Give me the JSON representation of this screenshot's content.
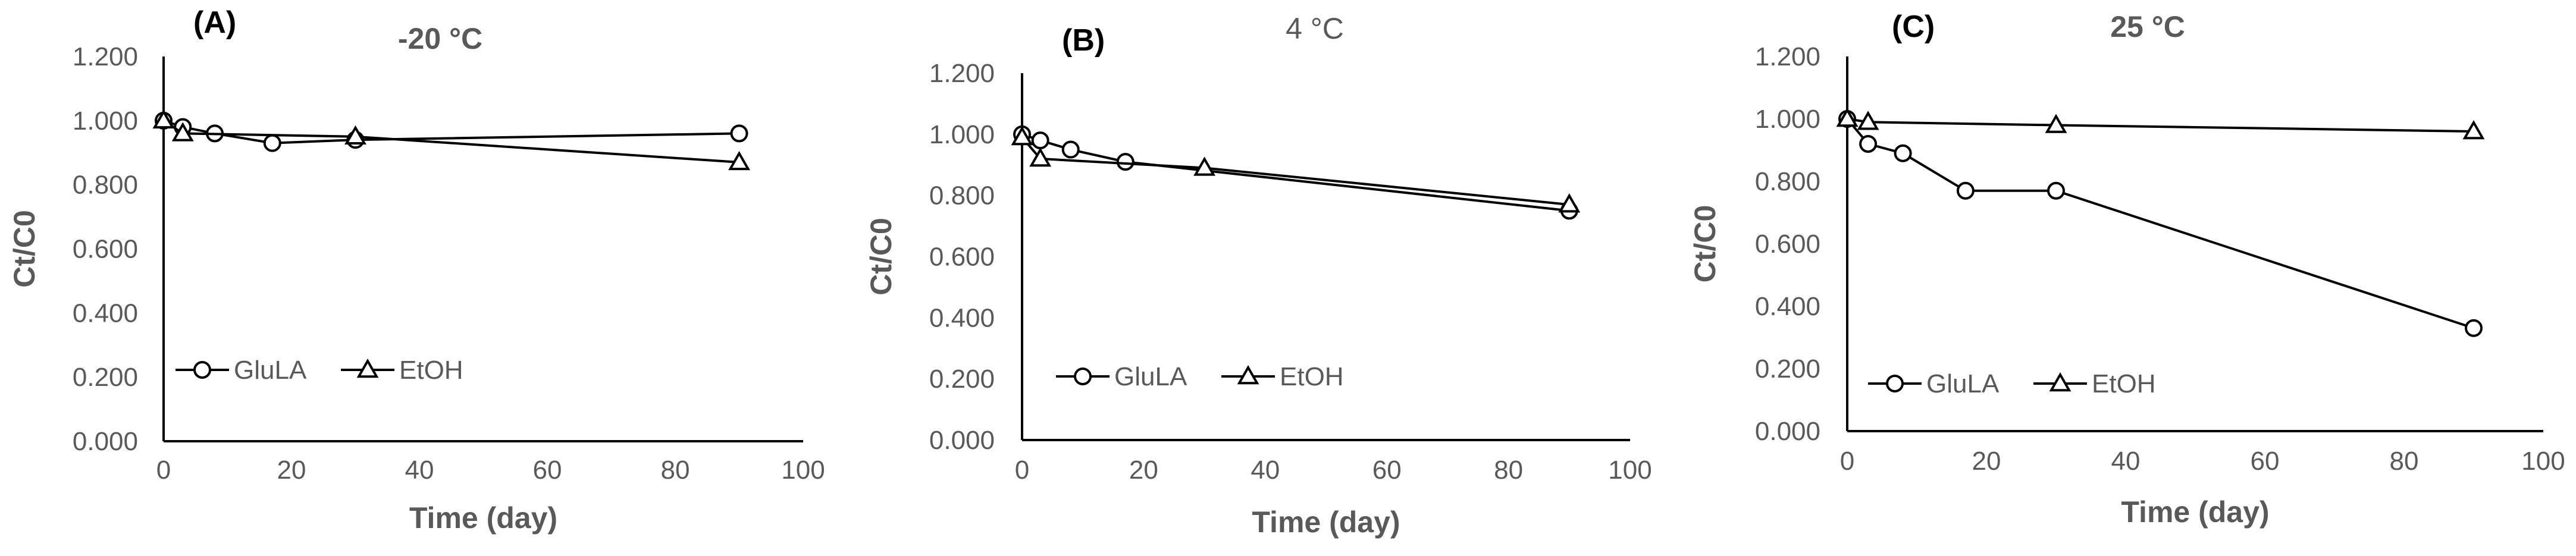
{
  "chart_data": [
    {
      "type": "line",
      "panel": "(A)",
      "title": "-20 °C",
      "xlabel": "Time (day)",
      "ylabel": "Ct/C0",
      "xlim": [
        0,
        100
      ],
      "ylim": [
        0,
        1.2
      ],
      "xticks": [
        "0",
        "20",
        "40",
        "60",
        "80",
        "100"
      ],
      "yticks": [
        "0.000",
        "0.200",
        "0.400",
        "0.600",
        "0.800",
        "1.000",
        "1.200"
      ],
      "legend_position": "bottom-left",
      "series": [
        {
          "name": "GluLA",
          "marker": "circle",
          "x": [
            0,
            3,
            8,
            17,
            30,
            90
          ],
          "y": [
            1.0,
            0.98,
            0.96,
            0.93,
            0.94,
            0.96
          ]
        },
        {
          "name": "EtOH",
          "marker": "triangle",
          "x": [
            0,
            3,
            30,
            90
          ],
          "y": [
            1.0,
            0.96,
            0.95,
            0.87
          ]
        }
      ]
    },
    {
      "type": "line",
      "panel": "(B)",
      "title": "4 °C",
      "xlabel": "Time (day)",
      "ylabel": "Ct/C0",
      "xlim": [
        0,
        100
      ],
      "ylim": [
        0,
        1.2
      ],
      "xticks": [
        "0",
        "20",
        "40",
        "60",
        "80",
        "100"
      ],
      "yticks": [
        "0.000",
        "0.200",
        "0.400",
        "0.600",
        "0.800",
        "1.000",
        "1.200"
      ],
      "legend_position": "bottom-left",
      "series": [
        {
          "name": "GluLA",
          "marker": "circle",
          "x": [
            0,
            3,
            8,
            17,
            90
          ],
          "y": [
            1.0,
            0.98,
            0.95,
            0.91,
            0.75
          ]
        },
        {
          "name": "EtOH",
          "marker": "triangle",
          "x": [
            0,
            3,
            30,
            90
          ],
          "y": [
            0.99,
            0.92,
            0.89,
            0.77
          ]
        }
      ]
    },
    {
      "type": "line",
      "panel": "(C)",
      "title": "25 °C",
      "xlabel": "Time (day)",
      "ylabel": "Ct/C0",
      "xlim": [
        0,
        100
      ],
      "ylim": [
        0,
        1.2
      ],
      "xticks": [
        "0",
        "20",
        "40",
        "60",
        "80",
        "100"
      ],
      "yticks": [
        "0.000",
        "0.200",
        "0.400",
        "0.600",
        "0.800",
        "1.000",
        "1.200"
      ],
      "legend_position": "bottom-left",
      "series": [
        {
          "name": "GluLA",
          "marker": "circle",
          "x": [
            0,
            3,
            8,
            17,
            30,
            90
          ],
          "y": [
            1.0,
            0.92,
            0.89,
            0.77,
            0.77,
            0.33
          ]
        },
        {
          "name": "EtOH",
          "marker": "triangle",
          "x": [
            0,
            3,
            30,
            90
          ],
          "y": [
            1.0,
            0.99,
            0.98,
            0.96
          ]
        }
      ]
    }
  ]
}
